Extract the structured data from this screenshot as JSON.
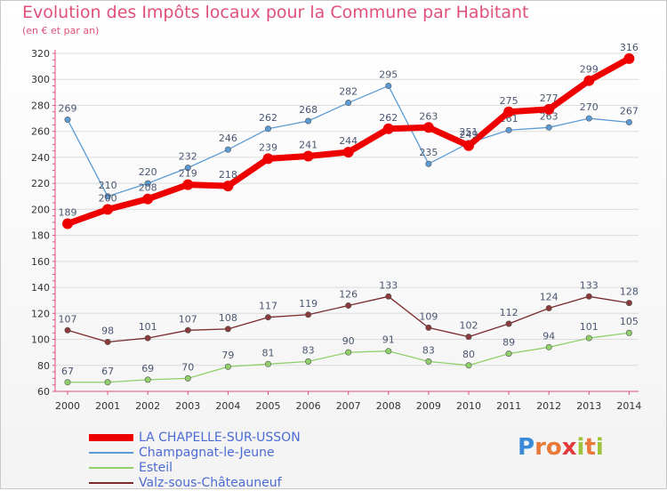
{
  "title": "Evolution des Impôts locaux pour la Commune par Habitant",
  "subtitle": "(en € et par an)",
  "logo": {
    "text": "Proxiti",
    "letters": [
      "P",
      "r",
      "o",
      "x",
      "i",
      "t",
      "i"
    ],
    "colors": [
      "#3a8ad8",
      "#e9793a",
      "#e9793a",
      "#e23a3a",
      "#9bc43a",
      "#e9793a",
      "#9bc43a"
    ]
  },
  "colors": {
    "title": "#e0507a",
    "axis": "#e0507a",
    "legend_text": "#4b6bd4"
  },
  "chart_data": {
    "type": "line",
    "x": [
      "2000",
      "2001",
      "2002",
      "2003",
      "2004",
      "2005",
      "2006",
      "2007",
      "2008",
      "2009",
      "2010",
      "2011",
      "2012",
      "2013",
      "2014"
    ],
    "ylim": [
      60,
      320
    ],
    "yticks": [
      60,
      80,
      100,
      120,
      140,
      160,
      180,
      200,
      220,
      240,
      260,
      280,
      300,
      320
    ],
    "grid": true,
    "legend_position": "bottom-left",
    "series": [
      {
        "name": "Champagnat-le-Jeune",
        "color": "#5b9bd5",
        "point_color": "#5b9bd5",
        "label_color": "#4a5670",
        "style": "thin",
        "values": [
          269,
          210,
          220,
          232,
          246,
          262,
          268,
          282,
          295,
          235,
          251,
          261,
          263,
          270,
          267
        ]
      },
      {
        "name": "Esteil",
        "color": "#8fd06a",
        "point_color": "#8fd06a",
        "label_color": "#4a5670",
        "style": "thin",
        "values": [
          67,
          67,
          69,
          70,
          79,
          81,
          83,
          90,
          91,
          83,
          80,
          89,
          94,
          101,
          105
        ]
      },
      {
        "name": "Valz-sous-Châteauneuf",
        "color": "#7a2a2a",
        "point_color": "#8a3a3a",
        "label_color": "#4a5670",
        "style": "thin",
        "values": [
          107,
          98,
          101,
          107,
          108,
          117,
          119,
          126,
          133,
          109,
          102,
          112,
          124,
          133,
          128
        ]
      },
      {
        "name": "LA CHAPELLE-SUR-USSON",
        "color": "#ee0000",
        "point_color": "#ee0000",
        "label_color": "#4a5670",
        "style": "thick",
        "values": [
          189,
          200,
          208,
          219,
          218,
          239,
          241,
          244,
          262,
          263,
          249,
          275,
          277,
          299,
          316
        ]
      }
    ],
    "legend_order": [
      "LA CHAPELLE-SUR-USSON",
      "Champagnat-le-Jeune",
      "Esteil",
      "Valz-sous-Châteauneuf"
    ]
  }
}
